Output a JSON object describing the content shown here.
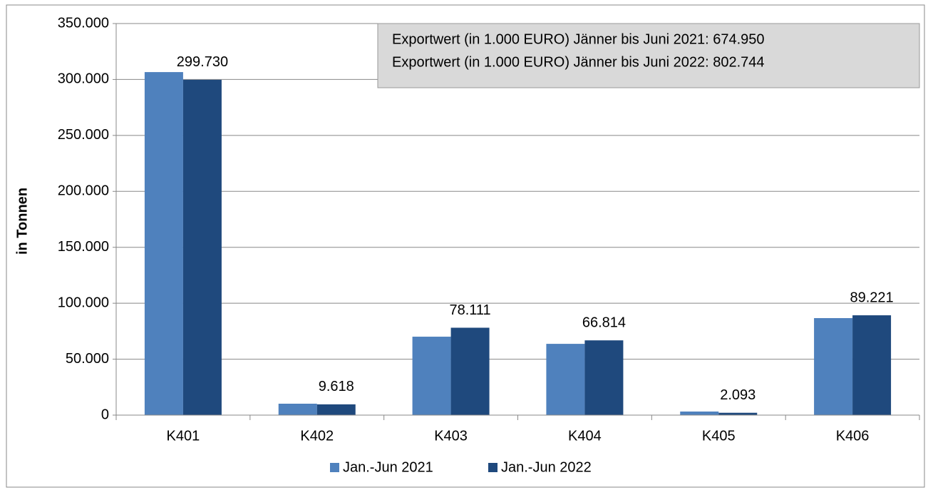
{
  "chart_data": {
    "type": "bar",
    "y_label": "in Tonnen",
    "annotations": [
      "Exportwert (in 1.000 EURO) Jänner bis Juni 2021: 674.950",
      "Exportwert (in 1.000 EURO) Jänner bis Juni 2022: 802.744"
    ],
    "categories": [
      "K401",
      "K402",
      "K403",
      "K404",
      "K405",
      "K406"
    ],
    "series": [
      {
        "name": "Jan.-Jun 2021",
        "color": "#4f81bd",
        "values": [
          306600,
          10200,
          70100,
          63700,
          3200,
          86700
        ]
      },
      {
        "name": "Jan.-Jun 2022",
        "color": "#1f497d",
        "values": [
          299730,
          9618,
          78111,
          66814,
          2093,
          89221
        ],
        "value_labels": [
          "299.730",
          "9.618",
          "78.111",
          "66.814",
          "2.093",
          "89.221"
        ]
      }
    ],
    "ylim": [
      0,
      350000
    ],
    "yticks": [
      0,
      {
        "value": 50000,
        "label": "50.000"
      },
      {
        "value": 100000,
        "label": "100.000"
      },
      {
        "value": 150000,
        "label": "150.000"
      },
      {
        "value": 200000,
        "label": "200.000"
      },
      {
        "value": 250000,
        "label": "250.000"
      },
      {
        "value": 300000,
        "label": "300.000"
      },
      {
        "value": 350000,
        "label": "350.000"
      }
    ],
    "grid": true,
    "legend": "bottom"
  }
}
